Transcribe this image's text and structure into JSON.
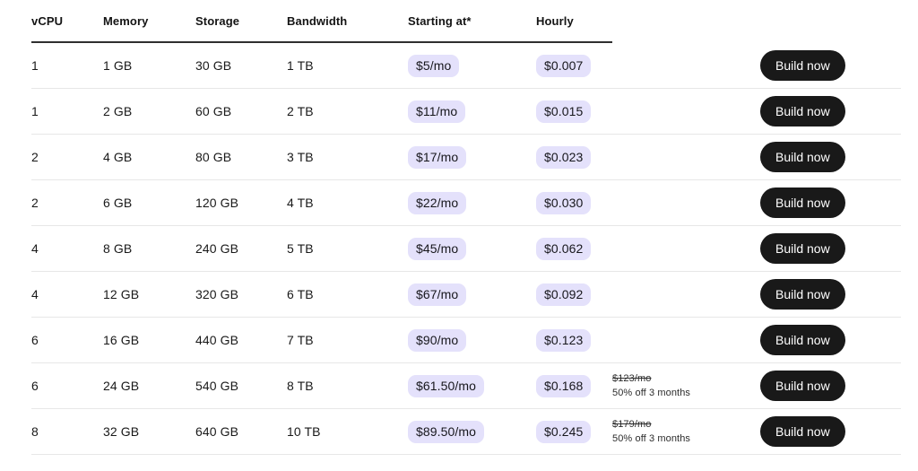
{
  "table": {
    "headers": [
      "vCPU",
      "Memory",
      "Storage",
      "Bandwidth",
      "Starting at*",
      "Hourly"
    ],
    "build_button_label": "Build now",
    "rows": [
      {
        "vcpu": "1",
        "memory": "1 GB",
        "storage": "30 GB",
        "bandwidth": "1 TB",
        "starting_at": "$5/mo",
        "hourly": "$0.007",
        "note_old_price": "",
        "note_offer": ""
      },
      {
        "vcpu": "1",
        "memory": "2 GB",
        "storage": "60 GB",
        "bandwidth": "2 TB",
        "starting_at": "$11/mo",
        "hourly": "$0.015",
        "note_old_price": "",
        "note_offer": ""
      },
      {
        "vcpu": "2",
        "memory": "4 GB",
        "storage": "80 GB",
        "bandwidth": "3 TB",
        "starting_at": "$17/mo",
        "hourly": "$0.023",
        "note_old_price": "",
        "note_offer": ""
      },
      {
        "vcpu": "2",
        "memory": "6 GB",
        "storage": "120 GB",
        "bandwidth": "4 TB",
        "starting_at": "$22/mo",
        "hourly": "$0.030",
        "note_old_price": "",
        "note_offer": ""
      },
      {
        "vcpu": "4",
        "memory": "8 GB",
        "storage": "240 GB",
        "bandwidth": "5 TB",
        "starting_at": "$45/mo",
        "hourly": "$0.062",
        "note_old_price": "",
        "note_offer": ""
      },
      {
        "vcpu": "4",
        "memory": "12 GB",
        "storage": "320 GB",
        "bandwidth": "6 TB",
        "starting_at": "$67/mo",
        "hourly": "$0.092",
        "note_old_price": "",
        "note_offer": ""
      },
      {
        "vcpu": "6",
        "memory": "16 GB",
        "storage": "440 GB",
        "bandwidth": "7 TB",
        "starting_at": "$90/mo",
        "hourly": "$0.123",
        "note_old_price": "",
        "note_offer": ""
      },
      {
        "vcpu": "6",
        "memory": "24 GB",
        "storage": "540 GB",
        "bandwidth": "8 TB",
        "starting_at": "$61.50/mo",
        "hourly": "$0.168",
        "note_old_price": "$123/mo",
        "note_offer": "50% off 3 months"
      },
      {
        "vcpu": "8",
        "memory": "32 GB",
        "storage": "640 GB",
        "bandwidth": "10 TB",
        "starting_at": "$89.50/mo",
        "hourly": "$0.245",
        "note_old_price": "$179/mo",
        "note_offer": "50% off 3 months"
      }
    ]
  },
  "colors": {
    "badge_bg": "#e4e1fb",
    "badge_text": "#17171c",
    "button_bg": "#191919",
    "button_text": "#ffffff",
    "separator": "#e7e7e7",
    "header_underline": "#2f2f2f"
  }
}
